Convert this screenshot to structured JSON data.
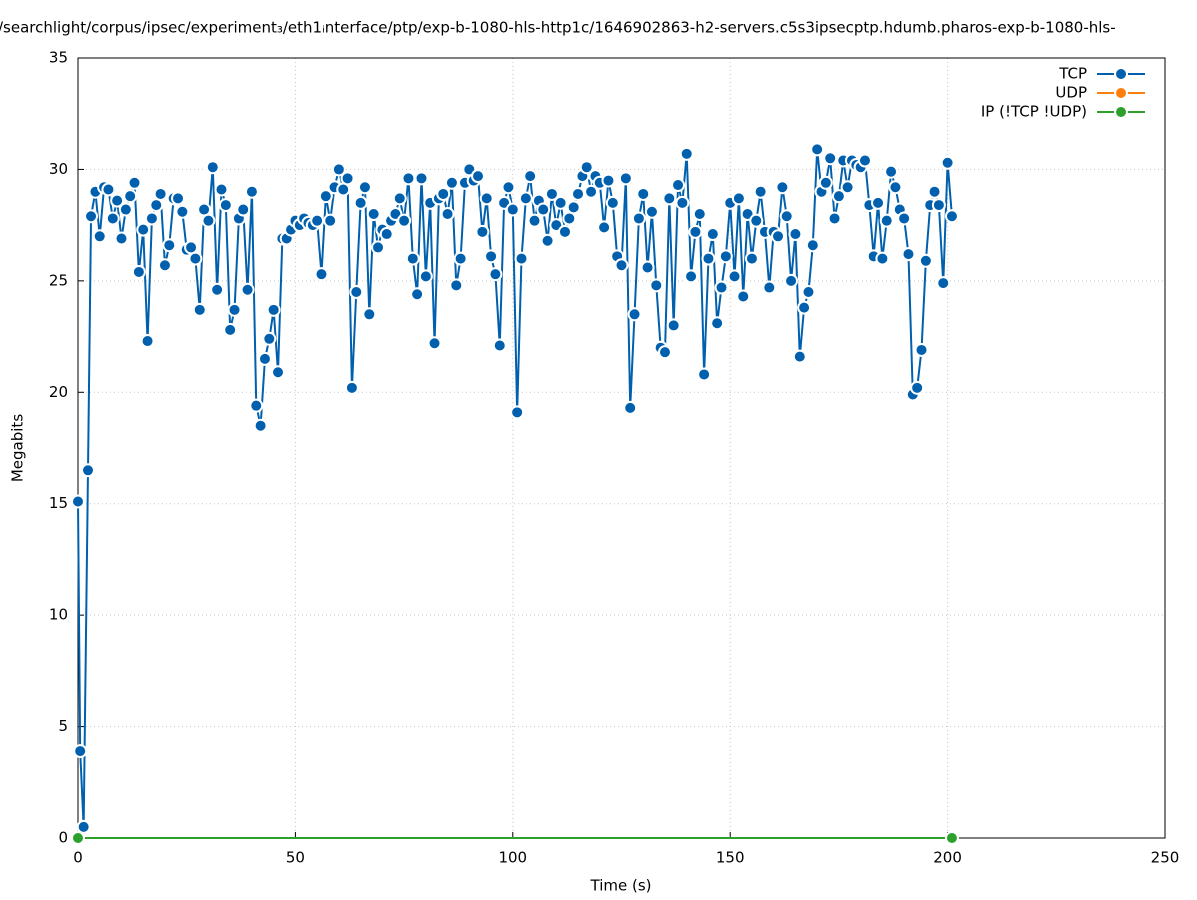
{
  "chart_data": {
    "type": "line",
    "title": "/searchlight/corpus/ipsec/experiment₃/eth1ᵢnterface/ptp/exp-b-1080-hls-http1c/1646902863-h2-servers.c5s3ipsecptp.hdumb.pharos-exp-b-1080-hls-",
    "x_label": "Time (s)",
    "y_label": "Megabits",
    "xlim": [
      0,
      250
    ],
    "xticks": [
      0,
      50,
      100,
      150,
      200,
      250
    ],
    "ylim": [
      0,
      35
    ],
    "yticks": [
      0,
      5,
      10,
      15,
      20,
      25,
      30,
      35
    ],
    "grid": true,
    "legend": "top-right",
    "x": [
      0,
      0.5,
      1.3,
      2.3,
      3,
      4,
      5,
      6,
      7,
      8,
      9,
      10,
      11,
      12,
      13,
      14,
      15,
      16,
      17,
      18,
      19,
      20,
      21,
      22,
      23,
      24,
      25,
      26,
      27,
      28,
      29,
      30,
      31,
      32,
      33,
      34,
      35,
      36,
      37,
      38,
      39,
      40,
      41,
      42,
      43,
      44,
      45,
      46,
      47,
      48,
      49,
      50,
      51,
      52,
      53,
      54,
      55,
      56,
      57,
      58,
      59,
      60,
      61,
      62,
      63,
      64,
      65,
      66,
      67,
      68,
      69,
      70,
      71,
      72,
      73,
      74,
      75,
      76,
      77,
      78,
      79,
      80,
      81,
      82,
      83,
      84,
      85,
      86,
      87,
      88,
      89,
      90,
      91,
      92,
      93,
      94,
      95,
      96,
      97,
      98,
      99,
      100,
      101,
      102,
      103,
      104,
      105,
      106,
      107,
      108,
      109,
      110,
      111,
      112,
      113,
      114,
      115,
      116,
      117,
      118,
      119,
      120,
      121,
      122,
      123,
      124,
      125,
      126,
      127,
      128,
      129,
      130,
      131,
      132,
      133,
      134,
      135,
      136,
      137,
      138,
      139,
      140,
      141,
      142,
      143,
      144,
      145,
      146,
      147,
      148,
      149,
      150,
      151,
      152,
      153,
      154,
      155,
      156,
      157,
      158,
      159,
      160,
      161,
      162,
      163,
      164,
      165,
      166,
      167,
      168,
      169,
      170,
      171,
      172,
      173,
      174,
      175,
      176,
      177,
      178,
      179,
      180,
      181,
      182,
      183,
      184,
      185,
      186,
      187,
      188,
      189,
      190,
      191,
      192,
      193,
      194,
      195,
      196,
      197,
      198,
      199,
      200,
      201
    ],
    "series": [
      {
        "name": "TCP",
        "color": "#0060ad",
        "values": [
          15.1,
          3.9,
          0.5,
          16.5,
          27.9,
          29,
          27,
          29.2,
          29.1,
          27.8,
          28.6,
          26.9,
          28.2,
          28.8,
          29.4,
          25.4,
          27.3,
          22.3,
          27.8,
          28.4,
          28.9,
          25.7,
          26.6,
          28.7,
          28.7,
          28.1,
          26.4,
          26.5,
          26,
          23.7,
          28.2,
          27.7,
          30.1,
          24.6,
          29.1,
          28.4,
          22.8,
          23.7,
          27.8,
          28.2,
          24.6,
          29,
          19.4,
          18.5,
          21.5,
          22.4,
          23.7,
          20.9,
          26.9,
          26.9,
          27.3,
          27.7,
          27.5,
          27.8,
          27.6,
          27.5,
          27.7,
          25.3,
          28.8,
          27.7,
          29.2,
          30,
          29.1,
          29.6,
          20.2,
          24.5,
          28.5,
          29.2,
          23.5,
          28,
          26.5,
          27.3,
          27.1,
          27.7,
          28,
          28.7,
          27.7,
          29.6,
          26,
          24.4,
          29.6,
          25.2,
          28.5,
          22.2,
          28.7,
          28.9,
          28,
          29.4,
          24.8,
          26,
          29.4,
          30,
          29.5,
          29.7,
          27.2,
          28.7,
          26.1,
          25.3,
          22.1,
          28.5,
          29.2,
          28.2,
          19.1,
          26,
          28.7,
          29.7,
          27.7,
          28.6,
          28.2,
          26.8,
          28.9,
          27.5,
          28.5,
          27.2,
          27.8,
          28.3,
          28.9,
          29.7,
          30.1,
          29,
          29.7,
          29.4,
          27.4,
          29.5,
          28.5,
          26.1,
          25.7,
          29.6,
          19.3,
          23.5,
          27.8,
          28.9,
          25.6,
          28.1,
          24.8,
          22,
          21.8,
          28.7,
          23,
          29.3,
          28.5,
          30.7,
          25.2,
          27.2,
          28,
          20.8,
          26,
          27.1,
          23.1,
          24.7,
          26.1,
          28.5,
          25.2,
          28.7,
          24.3,
          28,
          26,
          27.7,
          29,
          27.2,
          24.7,
          27.2,
          27,
          29.2,
          27.9,
          25,
          27.1,
          21.6,
          23.8,
          24.5,
          26.6,
          30.9,
          29,
          29.4,
          30.5,
          27.8,
          28.8,
          30.4,
          29.2,
          30.4,
          30.2,
          30.1,
          30.4,
          28.4,
          26.1,
          28.5,
          26,
          27.7,
          29.9,
          29.2,
          28.2,
          27.8,
          26.2,
          19.9,
          20.2,
          21.9,
          25.9,
          28.4,
          29,
          28.4,
          24.9,
          30.3,
          27.9
        ]
      },
      {
        "name": "UDP",
        "color": "#ff7f0e",
        "x": [],
        "values": []
      },
      {
        "name": "IP (!TCP  !UDP)",
        "color": "#2ca02c",
        "x": [
          0,
          201
        ],
        "values": [
          0,
          0
        ]
      }
    ]
  }
}
